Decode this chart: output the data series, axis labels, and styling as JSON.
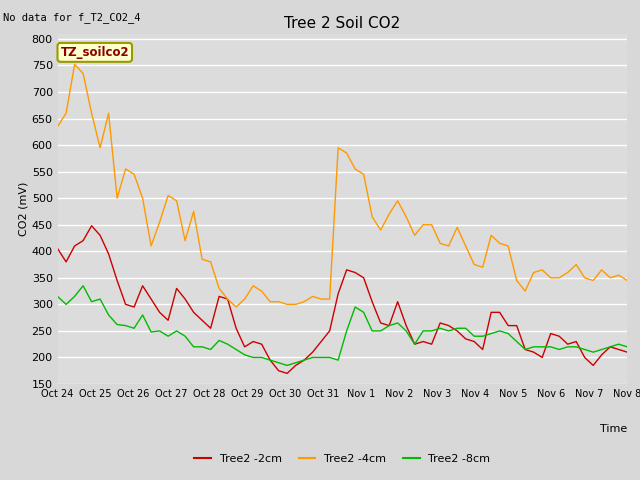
{
  "title": "Tree 2 Soil CO2",
  "no_data_text": "No data for f_T2_CO2_4",
  "ylabel": "CO2 (mV)",
  "xlabel": "Time",
  "ylim": [
    150,
    810
  ],
  "yticks": [
    150,
    200,
    250,
    300,
    350,
    400,
    450,
    500,
    550,
    600,
    650,
    700,
    750,
    800
  ],
  "xtick_labels": [
    "Oct 24",
    "Oct 25",
    "Oct 26",
    "Oct 27",
    "Oct 28",
    "Oct 29",
    "Oct 30",
    "Oct 31",
    "Nov 1",
    "Nov 2",
    "Nov 3",
    "Nov 4",
    "Nov 5",
    "Nov 6",
    "Nov 7",
    "Nov 8"
  ],
  "fig_bg": "#d8d8d8",
  "plot_bg": "#dcdcdc",
  "grid_color": "#ffffff",
  "legend_label_box": "TZ_soilco2",
  "legend_box_bg": "#ffffcc",
  "legend_box_border": "#999900",
  "series_colors": {
    "2cm": "#cc0000",
    "4cm": "#ff9900",
    "8cm": "#00bb00"
  },
  "series_labels": {
    "2cm": "Tree2 -2cm",
    "4cm": "Tree2 -4cm",
    "8cm": "Tree2 -8cm"
  },
  "data_2cm": [
    405,
    380,
    410,
    420,
    448,
    430,
    395,
    345,
    300,
    295,
    335,
    310,
    285,
    270,
    330,
    310,
    285,
    270,
    255,
    315,
    310,
    255,
    220,
    230,
    225,
    195,
    175,
    170,
    185,
    195,
    210,
    230,
    250,
    320,
    365,
    360,
    350,
    305,
    265,
    260,
    305,
    260,
    225,
    230,
    225,
    265,
    260,
    250,
    235,
    230,
    215,
    285,
    285,
    260,
    260,
    215,
    210,
    200,
    245,
    240,
    225,
    230,
    200,
    185,
    205,
    220,
    215,
    210
  ],
  "data_4cm": [
    635,
    660,
    752,
    735,
    660,
    595,
    660,
    500,
    555,
    545,
    500,
    410,
    455,
    505,
    495,
    420,
    475,
    385,
    380,
    330,
    310,
    295,
    310,
    335,
    325,
    305,
    305,
    300,
    300,
    305,
    315,
    310,
    310,
    595,
    585,
    555,
    545,
    465,
    440,
    470,
    495,
    465,
    430,
    450,
    450,
    415,
    410,
    445,
    410,
    375,
    370,
    430,
    415,
    410,
    345,
    325,
    360,
    365,
    350,
    350,
    360,
    375,
    350,
    345,
    365,
    350,
    355,
    345
  ],
  "data_8cm": [
    315,
    300,
    315,
    335,
    305,
    310,
    280,
    262,
    260,
    255,
    280,
    248,
    250,
    240,
    250,
    240,
    220,
    220,
    215,
    232,
    225,
    215,
    205,
    200,
    200,
    195,
    190,
    185,
    190,
    195,
    200,
    200,
    200,
    195,
    250,
    295,
    285,
    250,
    250,
    260,
    265,
    250,
    225,
    250,
    250,
    255,
    250,
    255,
    255,
    240,
    240,
    245,
    250,
    245,
    230,
    215,
    220,
    220,
    220,
    215,
    220,
    220,
    215,
    210,
    215,
    220,
    225,
    220
  ]
}
